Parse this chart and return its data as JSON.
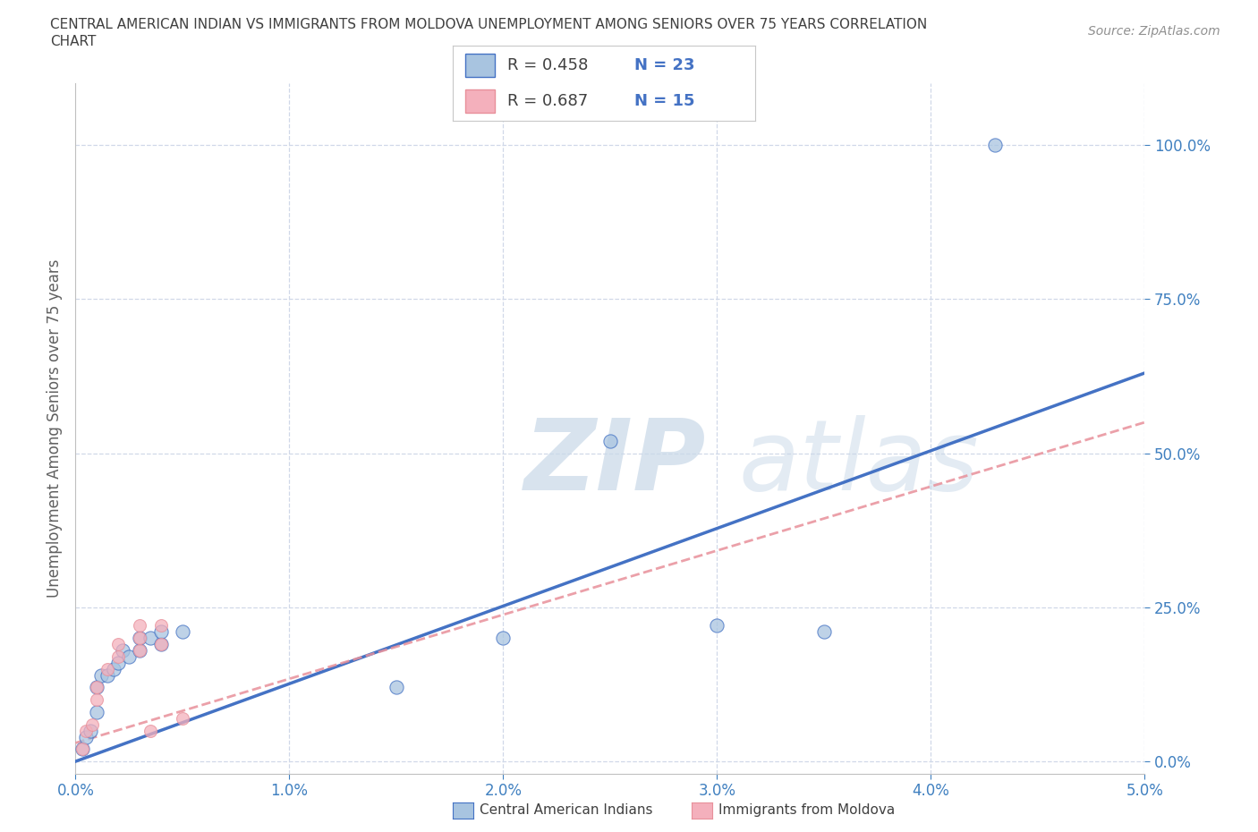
{
  "title_line1": "CENTRAL AMERICAN INDIAN VS IMMIGRANTS FROM MOLDOVA UNEMPLOYMENT AMONG SENIORS OVER 75 YEARS CORRELATION",
  "title_line2": "CHART",
  "source_text": "Source: ZipAtlas.com",
  "ylabel": "Unemployment Among Seniors over 75 years",
  "xlim": [
    0.0,
    0.05
  ],
  "ylim": [
    -0.02,
    1.1
  ],
  "xtick_labels": [
    "0.0%",
    "1.0%",
    "2.0%",
    "3.0%",
    "4.0%",
    "5.0%"
  ],
  "ytick_labels": [
    "0.0%",
    "25.0%",
    "50.0%",
    "75.0%",
    "100.0%"
  ],
  "ytick_positions": [
    0.0,
    0.25,
    0.5,
    0.75,
    1.0
  ],
  "xtick_positions": [
    0.0,
    0.01,
    0.02,
    0.03,
    0.04,
    0.05
  ],
  "watermark": "ZIPatlas",
  "legend_r1": "R = 0.458",
  "legend_n1": "N = 23",
  "legend_r2": "R = 0.687",
  "legend_n2": "N = 15",
  "legend_label1": "Central American Indians",
  "legend_label2": "Immigrants from Moldova",
  "color_blue": "#A8C4E0",
  "color_pink": "#F4B0BC",
  "color_blue_line": "#4472C4",
  "color_pink_line": "#E8909A",
  "blue_scatter_x": [
    0.0003,
    0.0005,
    0.0007,
    0.001,
    0.001,
    0.0012,
    0.0015,
    0.0018,
    0.002,
    0.0022,
    0.0025,
    0.003,
    0.003,
    0.0035,
    0.004,
    0.004,
    0.005,
    0.015,
    0.02,
    0.025,
    0.03,
    0.035,
    0.043
  ],
  "blue_scatter_y": [
    0.02,
    0.04,
    0.05,
    0.08,
    0.12,
    0.14,
    0.14,
    0.15,
    0.16,
    0.18,
    0.17,
    0.18,
    0.2,
    0.2,
    0.19,
    0.21,
    0.21,
    0.12,
    0.2,
    0.52,
    0.22,
    0.21,
    1.0
  ],
  "pink_scatter_x": [
    0.0003,
    0.0005,
    0.0008,
    0.001,
    0.001,
    0.0015,
    0.002,
    0.002,
    0.003,
    0.003,
    0.003,
    0.0035,
    0.004,
    0.004,
    0.005
  ],
  "pink_scatter_y": [
    0.02,
    0.05,
    0.06,
    0.1,
    0.12,
    0.15,
    0.17,
    0.19,
    0.18,
    0.2,
    0.22,
    0.05,
    0.19,
    0.22,
    0.07
  ],
  "blue_trend_x": [
    0.0,
    0.05
  ],
  "blue_trend_y": [
    0.0,
    0.63
  ],
  "pink_trend_x": [
    0.0,
    0.05
  ],
  "pink_trend_y": [
    0.03,
    0.55
  ],
  "background_color": "#FFFFFF",
  "grid_color": "#D0D8E8",
  "title_color": "#404040",
  "axis_label_color": "#606060",
  "tick_color": "#4080C0",
  "watermark_color": "#C8D8E8",
  "scatter_size_blue": 120,
  "scatter_size_pink": 100
}
